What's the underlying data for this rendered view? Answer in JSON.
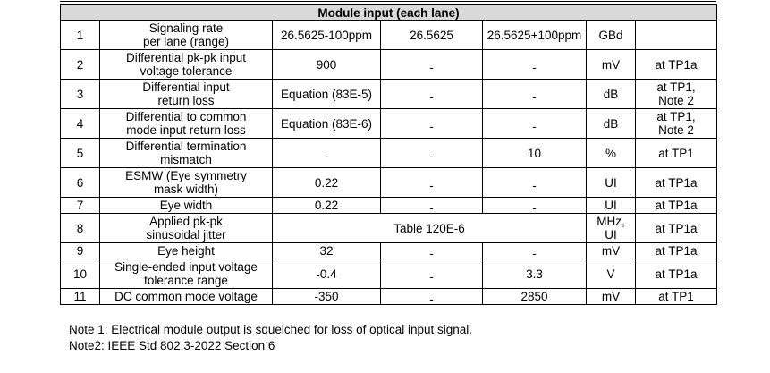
{
  "table": {
    "title": "Module input (each lane)",
    "rows": [
      {
        "num": "1",
        "param": "Signaling rate\nper lane (range)",
        "min": "26.5625-100ppm",
        "typ": "26.5625",
        "max": "26.5625+100ppm",
        "unit": "GBd",
        "cond": ""
      },
      {
        "num": "2",
        "param": "Differential pk-pk input\nvoltage tolerance",
        "min": "900",
        "typ": "-",
        "max": "-",
        "unit": "mV",
        "cond": "at TP1a"
      },
      {
        "num": "3",
        "param": "Differential input\nreturn loss",
        "min": "Equation (83E-5)",
        "typ": "-",
        "max": "-",
        "unit": "dB",
        "cond": "at TP1,\nNote 2"
      },
      {
        "num": "4",
        "param": "Differential to common\nmode input return loss",
        "min": "Equation (83E-6)",
        "typ": "-",
        "max": "-",
        "unit": "dB",
        "cond": "at TP1,\nNote 2"
      },
      {
        "num": "5",
        "param": "Differential termination\nmismatch",
        "min": "-",
        "typ": "-",
        "max": "10",
        "unit": "%",
        "cond": "at TP1"
      },
      {
        "num": "6",
        "param": "ESMW (Eye symmetry\nmask width)",
        "min": "0.22",
        "typ": "-",
        "max": "-",
        "unit": "UI",
        "cond": "at TP1a"
      },
      {
        "num": "7",
        "param": "Eye width",
        "min": "0.22",
        "typ": "-",
        "max": "-",
        "unit": "UI",
        "cond": "at TP1a"
      },
      {
        "num": "8",
        "param": "Applied pk-pk\nsinusoidal jitter",
        "span": "Table 120E-6",
        "unit": "MHz,\nUI",
        "cond": "at TP1a"
      },
      {
        "num": "9",
        "param": "Eye height",
        "min": "32",
        "typ": "-",
        "max": "-",
        "unit": "mV",
        "cond": "at TP1a"
      },
      {
        "num": "10",
        "param": "Single-ended input voltage\ntolerance range",
        "min": "-0.4",
        "typ": "-",
        "max": "3.3",
        "unit": "V",
        "cond": "at TP1a"
      },
      {
        "num": "11",
        "param": "DC common mode voltage",
        "min": "-350",
        "typ": "-",
        "max": "2850",
        "unit": "mV",
        "cond": "at TP1"
      }
    ]
  },
  "notes": {
    "note1": "Note 1: Electrical module output is squelched for loss of optical input signal.",
    "note2": "Note2: IEEE Std 802.3-2022 Section 6"
  }
}
